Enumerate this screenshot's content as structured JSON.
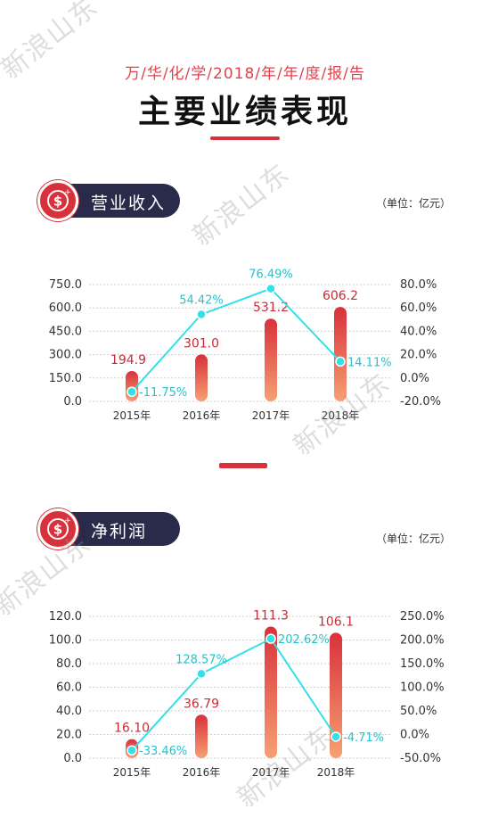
{
  "header": {
    "subtitle": "万/华/化/学/2018/年/年/度/报/告",
    "title": "主要业绩表现"
  },
  "watermark": "新浪山东",
  "colors": {
    "accent": "#d8313b",
    "pill": "#2a2b4a",
    "line": "#33e0e6",
    "bar_top": "#d8313b",
    "bar_bottom": "#f7a074",
    "grid": "#cfcfcf"
  },
  "sections": [
    {
      "label": "营业收入",
      "unit": "（单位：亿元）",
      "icon": "dollar-icon"
    },
    {
      "label": "净利润",
      "unit": "（单位：亿元）",
      "icon": "dollar-icon"
    }
  ],
  "chart_data": [
    {
      "type": "bar",
      "categories": [
        "2015年",
        "2016年",
        "2017年",
        "2018年"
      ],
      "series": [
        {
          "values": [
            194.9,
            301.0,
            531.2,
            606.2
          ],
          "labels": [
            "194.9",
            "301.0",
            "531.2",
            "606.2"
          ]
        },
        {
          "type": "line",
          "values": [
            -11.75,
            54.42,
            76.49,
            14.11
          ],
          "labels": [
            "-11.75%",
            "54.42%",
            "76.49%",
            "14.11%"
          ]
        }
      ],
      "y_ticks": [
        "750.0",
        "600.0",
        "450.0",
        "300.0",
        "150.0",
        "0.0"
      ],
      "y_right_ticks": [
        "80.0%",
        "60.0%",
        "40.0%",
        "20.0%",
        "0.0%",
        "-20.0%"
      ],
      "ylim": [
        0,
        750
      ],
      "y_right_lim": [
        -20,
        80
      ],
      "grid": true
    },
    {
      "type": "bar",
      "categories": [
        "2015年",
        "2016年",
        "2017年",
        "2018年"
      ],
      "series": [
        {
          "values": [
            16.1,
            36.79,
            111.3,
            106.1
          ],
          "labels": [
            "16.10",
            "36.79",
            "111.3",
            "106.1"
          ]
        },
        {
          "type": "line",
          "values": [
            -33.46,
            128.57,
            202.62,
            -4.71
          ],
          "labels": [
            "-33.46%",
            "128.57%",
            "202.62%",
            "-4.71%"
          ]
        }
      ],
      "y_ticks": [
        "120.0",
        "100.0",
        "80.0",
        "60.0",
        "40.0",
        "20.0",
        "0.0"
      ],
      "y_right_ticks": [
        "250.0%",
        "200.0%",
        "150.0%",
        "100.0%",
        "50.0%",
        "0.0%",
        "-50.0%"
      ],
      "ylim": [
        0,
        120
      ],
      "y_right_lim": [
        -50,
        250
      ],
      "grid": true
    }
  ]
}
